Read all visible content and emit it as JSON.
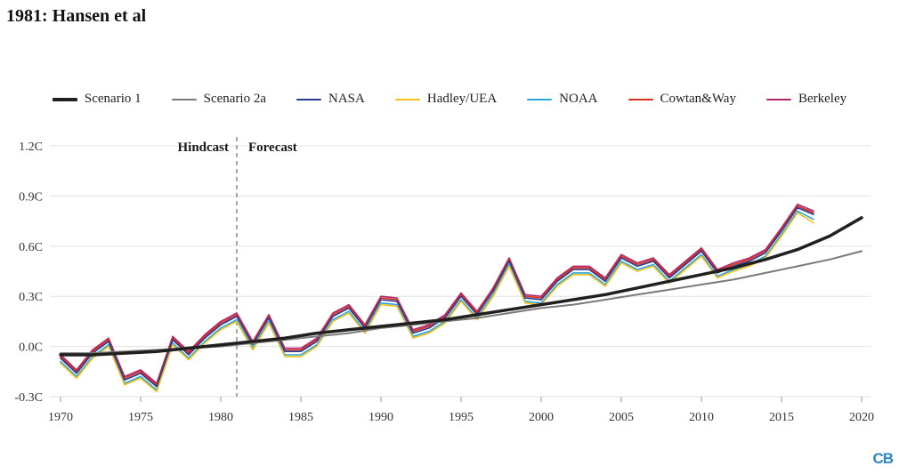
{
  "header": {
    "title": "1981: Hansen et al"
  },
  "watermark": {
    "text": "CB"
  },
  "chart_data": {
    "type": "line",
    "title": "1981: Hansen et al",
    "xlabel": "",
    "ylabel": "",
    "xlim": [
      1970,
      2020
    ],
    "ylim": [
      -0.3,
      1.2
    ],
    "grid": true,
    "legend_position": "top",
    "xticks": [
      1970,
      1975,
      1980,
      1985,
      1990,
      1995,
      2000,
      2005,
      2010,
      2015,
      2020
    ],
    "yticks": [
      {
        "value": -0.3,
        "label": "-0.3C"
      },
      {
        "value": 0.0,
        "label": "0.0C"
      },
      {
        "value": 0.3,
        "label": "0.3C"
      },
      {
        "value": 0.6,
        "label": "0.6C"
      },
      {
        "value": 0.9,
        "label": "0.9C"
      },
      {
        "value": 1.2,
        "label": "1.2C"
      }
    ],
    "divider": {
      "x": 1981,
      "style": "dashed"
    },
    "annotations": [
      {
        "text": "Hindcast",
        "side": "left"
      },
      {
        "text": "Forecast",
        "side": "right"
      }
    ],
    "series": [
      {
        "name": "Scenario 1",
        "color": "#221f1f",
        "width": 3.5,
        "x": [
          1970,
          1972,
          1974,
          1976,
          1978,
          1980,
          1982,
          1984,
          1986,
          1988,
          1990,
          1992,
          1994,
          1996,
          1998,
          2000,
          2002,
          2004,
          2006,
          2008,
          2010,
          2012,
          2014,
          2016,
          2018,
          2020
        ],
        "values": [
          -0.05,
          -0.05,
          -0.04,
          -0.03,
          -0.01,
          0.01,
          0.03,
          0.05,
          0.08,
          0.1,
          0.12,
          0.14,
          0.16,
          0.19,
          0.22,
          0.25,
          0.28,
          0.31,
          0.35,
          0.39,
          0.43,
          0.47,
          0.52,
          0.58,
          0.66,
          0.77
        ]
      },
      {
        "name": "Scenario 2a",
        "color": "#7a7a7a",
        "width": 2,
        "x": [
          1970,
          1972,
          1974,
          1976,
          1978,
          1980,
          1982,
          1984,
          1986,
          1988,
          1990,
          1992,
          1994,
          1996,
          1998,
          2000,
          2002,
          2004,
          2006,
          2008,
          2010,
          2012,
          2014,
          2016,
          2018,
          2020
        ],
        "values": [
          -0.04,
          -0.04,
          -0.03,
          -0.02,
          -0.01,
          0.0,
          0.02,
          0.04,
          0.06,
          0.08,
          0.11,
          0.13,
          0.15,
          0.17,
          0.2,
          0.23,
          0.25,
          0.28,
          0.31,
          0.34,
          0.37,
          0.4,
          0.44,
          0.48,
          0.52,
          0.57
        ]
      },
      {
        "name": "NASA",
        "color": "#2b3990",
        "width": 1.6,
        "x": [
          1970,
          1971,
          1972,
          1973,
          1974,
          1975,
          1976,
          1977,
          1978,
          1979,
          1980,
          1981,
          1982,
          1983,
          1984,
          1985,
          1986,
          1987,
          1988,
          1989,
          1990,
          1991,
          1992,
          1993,
          1994,
          1995,
          1996,
          1997,
          1998,
          1999,
          2000,
          2001,
          2002,
          2003,
          2004,
          2005,
          2006,
          2007,
          2008,
          2009,
          2010,
          2011,
          2012,
          2013,
          2014,
          2015,
          2016,
          2017
        ],
        "values": [
          -0.07,
          -0.16,
          -0.04,
          0.03,
          -0.2,
          -0.16,
          -0.24,
          0.04,
          -0.05,
          0.05,
          0.13,
          0.18,
          0.01,
          0.17,
          -0.03,
          -0.03,
          0.03,
          0.18,
          0.23,
          0.11,
          0.28,
          0.27,
          0.08,
          0.11,
          0.17,
          0.3,
          0.19,
          0.33,
          0.51,
          0.29,
          0.28,
          0.39,
          0.46,
          0.46,
          0.39,
          0.53,
          0.48,
          0.51,
          0.41,
          0.49,
          0.57,
          0.44,
          0.48,
          0.51,
          0.56,
          0.69,
          0.83,
          0.79
        ]
      },
      {
        "name": "Hadley/UEA",
        "color": "#f5c018",
        "width": 1.6,
        "x": [
          1970,
          1971,
          1972,
          1973,
          1974,
          1975,
          1976,
          1977,
          1978,
          1979,
          1980,
          1981,
          1982,
          1983,
          1984,
          1985,
          1986,
          1987,
          1988,
          1989,
          1990,
          1991,
          1992,
          1993,
          1994,
          1995,
          1996,
          1997,
          1998,
          1999,
          2000,
          2001,
          2002,
          2003,
          2004,
          2005,
          2006,
          2007,
          2008,
          2009,
          2010,
          2011,
          2012,
          2013,
          2014,
          2015,
          2016,
          2017
        ],
        "values": [
          -0.1,
          -0.19,
          -0.07,
          0.0,
          -0.23,
          -0.19,
          -0.27,
          0.01,
          -0.08,
          0.02,
          0.1,
          0.15,
          -0.02,
          0.14,
          -0.06,
          -0.06,
          0.0,
          0.15,
          0.2,
          0.08,
          0.25,
          0.24,
          0.05,
          0.08,
          0.14,
          0.27,
          0.16,
          0.3,
          0.48,
          0.26,
          0.25,
          0.36,
          0.43,
          0.43,
          0.36,
          0.5,
          0.45,
          0.48,
          0.38,
          0.46,
          0.54,
          0.41,
          0.45,
          0.48,
          0.53,
          0.66,
          0.8,
          0.74
        ]
      },
      {
        "name": "NOAA",
        "color": "#29a5dc",
        "width": 1.6,
        "x": [
          1970,
          1971,
          1972,
          1973,
          1974,
          1975,
          1976,
          1977,
          1978,
          1979,
          1980,
          1981,
          1982,
          1983,
          1984,
          1985,
          1986,
          1987,
          1988,
          1989,
          1990,
          1991,
          1992,
          1993,
          1994,
          1995,
          1996,
          1997,
          1998,
          1999,
          2000,
          2001,
          2002,
          2003,
          2004,
          2005,
          2006,
          2007,
          2008,
          2009,
          2010,
          2011,
          2012,
          2013,
          2014,
          2015,
          2016,
          2017
        ],
        "values": [
          -0.09,
          -0.18,
          -0.06,
          0.01,
          -0.22,
          -0.18,
          -0.26,
          0.02,
          -0.07,
          0.03,
          0.11,
          0.16,
          -0.01,
          0.15,
          -0.05,
          -0.05,
          0.01,
          0.16,
          0.21,
          0.09,
          0.26,
          0.25,
          0.06,
          0.09,
          0.15,
          0.28,
          0.17,
          0.31,
          0.49,
          0.27,
          0.26,
          0.37,
          0.44,
          0.44,
          0.37,
          0.51,
          0.46,
          0.49,
          0.39,
          0.47,
          0.55,
          0.42,
          0.46,
          0.49,
          0.54,
          0.67,
          0.81,
          0.76
        ]
      },
      {
        "name": "Cowtan&Way",
        "color": "#d7301f",
        "width": 1.6,
        "x": [
          1970,
          1971,
          1972,
          1973,
          1974,
          1975,
          1976,
          1977,
          1978,
          1979,
          1980,
          1981,
          1982,
          1983,
          1984,
          1985,
          1986,
          1987,
          1988,
          1989,
          1990,
          1991,
          1992,
          1993,
          1994,
          1995,
          1996,
          1997,
          1998,
          1999,
          2000,
          2001,
          2002,
          2003,
          2004,
          2005,
          2006,
          2007,
          2008,
          2009,
          2010,
          2011,
          2012,
          2013,
          2014,
          2015,
          2016,
          2017
        ],
        "values": [
          -0.06,
          -0.15,
          -0.03,
          0.04,
          -0.19,
          -0.15,
          -0.23,
          0.05,
          -0.04,
          0.06,
          0.14,
          0.19,
          0.02,
          0.18,
          -0.02,
          -0.02,
          0.04,
          0.19,
          0.24,
          0.12,
          0.29,
          0.28,
          0.09,
          0.12,
          0.18,
          0.31,
          0.2,
          0.34,
          0.52,
          0.3,
          0.29,
          0.4,
          0.47,
          0.47,
          0.4,
          0.54,
          0.49,
          0.52,
          0.42,
          0.5,
          0.58,
          0.45,
          0.49,
          0.52,
          0.57,
          0.7,
          0.84,
          0.8
        ]
      },
      {
        "name": "Berkeley",
        "color": "#b0266c",
        "width": 1.6,
        "x": [
          1970,
          1971,
          1972,
          1973,
          1974,
          1975,
          1976,
          1977,
          1978,
          1979,
          1980,
          1981,
          1982,
          1983,
          1984,
          1985,
          1986,
          1987,
          1988,
          1989,
          1990,
          1991,
          1992,
          1993,
          1994,
          1995,
          1996,
          1997,
          1998,
          1999,
          2000,
          2001,
          2002,
          2003,
          2004,
          2005,
          2006,
          2007,
          2008,
          2009,
          2010,
          2011,
          2012,
          2013,
          2014,
          2015,
          2016,
          2017
        ],
        "values": [
          -0.05,
          -0.14,
          -0.02,
          0.05,
          -0.18,
          -0.14,
          -0.22,
          0.06,
          -0.03,
          0.07,
          0.15,
          0.2,
          0.03,
          0.19,
          -0.01,
          -0.01,
          0.05,
          0.2,
          0.25,
          0.13,
          0.3,
          0.29,
          0.1,
          0.13,
          0.19,
          0.32,
          0.21,
          0.35,
          0.53,
          0.31,
          0.3,
          0.41,
          0.48,
          0.48,
          0.41,
          0.55,
          0.5,
          0.53,
          0.43,
          0.51,
          0.59,
          0.46,
          0.5,
          0.53,
          0.58,
          0.71,
          0.85,
          0.81
        ]
      }
    ]
  }
}
